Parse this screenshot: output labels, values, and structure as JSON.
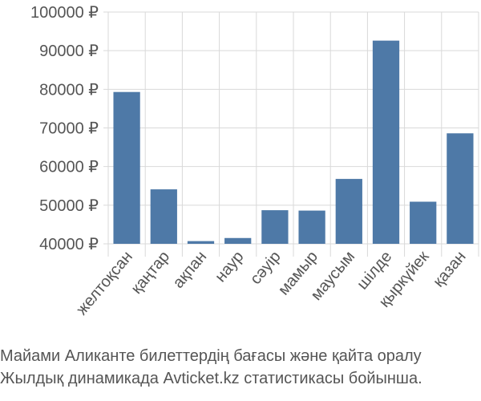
{
  "chart_data": {
    "type": "bar",
    "categories": [
      "желтоқсан",
      "қаңтар",
      "ақпан",
      "наур",
      "сәуір",
      "мамыр",
      "маусым",
      "шілде",
      "қыркүйек",
      "қазан"
    ],
    "values": [
      79300,
      54100,
      40700,
      41500,
      48700,
      48600,
      56800,
      92600,
      50900,
      68600
    ],
    "ylim": [
      40000,
      100000
    ],
    "yticks": [
      40000,
      50000,
      60000,
      70000,
      80000,
      90000,
      100000
    ],
    "currency_suffix": " ₽",
    "bar_color": "#4e79a7",
    "grid": true
  },
  "caption": {
    "line1": "Майами Аликанте билеттердің бағасы және қайта оралу",
    "line2": "Жылдық динамикада Avticket.kz статистикасы бойынша."
  }
}
